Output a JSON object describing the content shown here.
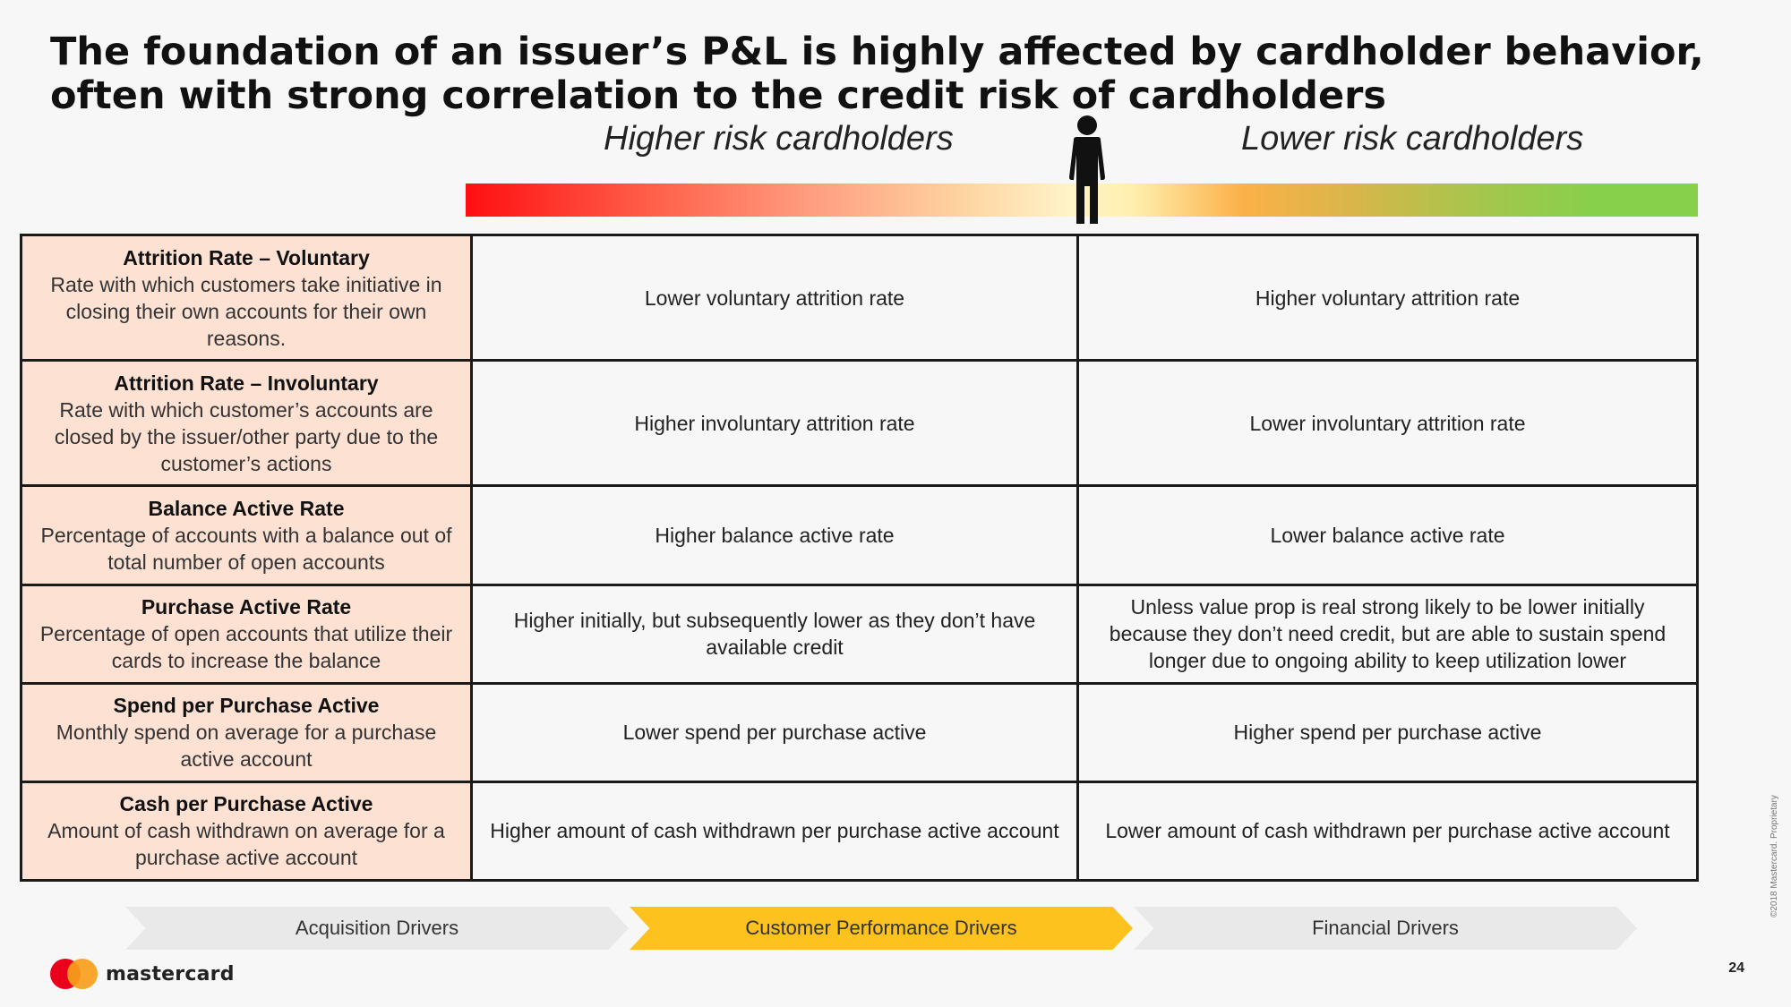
{
  "title": {
    "line1": "The foundation of an issuer’s P&L is highly affected by cardholder behavior,",
    "line2": "often with strong correlation to the credit risk of cardholders"
  },
  "risk_labels": {
    "higher": "Higher risk cardholders",
    "lower": "Lower risk cardholders"
  },
  "colors": {
    "gradient_start": "#ff0e12",
    "gradient_end": "#86d04c",
    "metric_bg": "#fde1d3",
    "active_chevron": "#fdc21d",
    "inactive_chevron": "#e9e9e9"
  },
  "rows": [
    {
      "title": "Attrition Rate – Voluntary",
      "desc": "Rate with which customers take initiative in closing their own accounts for their own reasons.",
      "higher_risk": "Lower voluntary attrition rate",
      "lower_risk": "Higher voluntary attrition rate"
    },
    {
      "title": "Attrition Rate – Involuntary",
      "desc": "Rate with which customer’s accounts are closed by the issuer/other party due to the customer’s actions",
      "higher_risk": "Higher involuntary attrition rate",
      "lower_risk": "Lower involuntary attrition rate"
    },
    {
      "title": "Balance Active Rate",
      "desc": "Percentage of accounts with a balance out of total number of open accounts",
      "higher_risk": "Higher balance active rate",
      "lower_risk": "Lower balance active rate"
    },
    {
      "title": "Purchase Active Rate",
      "desc": "Percentage of open accounts that utilize their cards to increase the balance",
      "higher_risk": "Higher initially, but subsequently lower as they don’t have available credit",
      "lower_risk": "Unless value prop is real strong likely to be lower initially because they don’t need credit, but are able to sustain spend longer due to ongoing ability to keep utilization lower"
    },
    {
      "title": "Spend per Purchase Active",
      "desc": "Monthly spend on average for a purchase active account",
      "higher_risk": "Lower spend per purchase active",
      "lower_risk": "Higher spend per purchase active"
    },
    {
      "title": "Cash per Purchase Active",
      "desc": "Amount of cash withdrawn on average for a purchase active account",
      "higher_risk": "Higher amount of cash withdrawn per purchase active account",
      "lower_risk": "Lower amount of cash withdrawn per purchase active account"
    }
  ],
  "drivers": [
    {
      "label": "Acquisition Drivers",
      "active": false
    },
    {
      "label": "Customer Performance Drivers",
      "active": true
    },
    {
      "label": "Financial Drivers",
      "active": false
    }
  ],
  "footer": {
    "brand": "mastercard",
    "page_number": "24",
    "copyright": "©2018 Mastercard. Proprietary"
  }
}
